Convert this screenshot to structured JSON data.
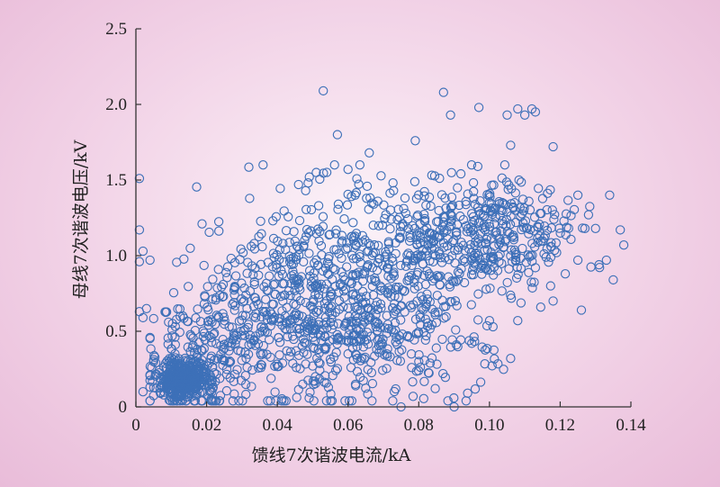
{
  "chart_data": {
    "type": "scatter",
    "title": "",
    "xlabel": "馈线7次谐波电流/kA",
    "ylabel": "母线7次谐波电压/kV",
    "xlim": [
      0,
      0.14
    ],
    "ylim": [
      0,
      2.5
    ],
    "xticks": [
      0,
      0.02,
      0.04,
      0.06,
      0.08,
      0.1,
      0.12,
      0.14
    ],
    "xtick_labels": [
      "0",
      "0.02",
      "0.04",
      "0.06",
      "0.08",
      "0.10",
      "0.12",
      "0.14"
    ],
    "yticks": [
      0,
      0.5,
      1.0,
      1.5,
      2.0,
      2.5
    ],
    "ytick_labels": [
      "0",
      "0.5",
      "1.0",
      "1.5",
      "2.0",
      "2.5"
    ],
    "grid": false,
    "marker": "open-circle",
    "series_color": "#3d70b8",
    "clusters": [
      {
        "cx": 0.0135,
        "cy": 0.18,
        "sx": 0.0045,
        "sy": 0.07,
        "n": 420
      },
      {
        "cx": 0.022,
        "cy": 0.45,
        "sx": 0.008,
        "sy": 0.22,
        "n": 150
      },
      {
        "cx": 0.045,
        "cy": 0.65,
        "sx": 0.014,
        "sy": 0.33,
        "n": 420
      },
      {
        "cx": 0.068,
        "cy": 0.78,
        "sx": 0.014,
        "sy": 0.32,
        "n": 380
      },
      {
        "cx": 0.092,
        "cy": 1.15,
        "sx": 0.014,
        "sy": 0.18,
        "n": 260
      },
      {
        "cx": 0.108,
        "cy": 1.15,
        "sx": 0.008,
        "sy": 0.15,
        "n": 140
      },
      {
        "cx": 0.08,
        "cy": 0.45,
        "sx": 0.015,
        "sy": 0.2,
        "n": 90
      }
    ],
    "points": [
      [
        0.001,
        1.51
      ],
      [
        0.001,
        1.17
      ],
      [
        0.002,
        1.03
      ],
      [
        0.001,
        0.96
      ],
      [
        0.004,
        0.97
      ],
      [
        0.001,
        0.63
      ],
      [
        0.002,
        0.59
      ],
      [
        0.003,
        0.65
      ],
      [
        0.002,
        0.1
      ],
      [
        0.053,
        2.09
      ],
      [
        0.057,
        1.8
      ],
      [
        0.087,
        2.08
      ],
      [
        0.089,
        1.93
      ],
      [
        0.097,
        1.98
      ],
      [
        0.105,
        1.93
      ],
      [
        0.108,
        1.97
      ],
      [
        0.11,
        1.93
      ],
      [
        0.112,
        1.97
      ],
      [
        0.113,
        1.95
      ],
      [
        0.118,
        1.72
      ],
      [
        0.079,
        1.76
      ],
      [
        0.066,
        1.68
      ],
      [
        0.106,
        1.73
      ],
      [
        0.125,
        1.4
      ],
      [
        0.128,
        1.27
      ],
      [
        0.127,
        1.18
      ],
      [
        0.13,
        1.18
      ],
      [
        0.134,
        1.4
      ],
      [
        0.137,
        1.17
      ],
      [
        0.138,
        1.07
      ],
      [
        0.125,
        0.97
      ],
      [
        0.131,
        0.94
      ],
      [
        0.135,
        0.84
      ],
      [
        0.126,
        0.64
      ],
      [
        0.118,
        0.7
      ],
      [
        0.116,
        0.99
      ],
      [
        0.119,
        1.02
      ],
      [
        0.113,
        0.92
      ],
      [
        0.108,
        0.57
      ],
      [
        0.106,
        0.32
      ],
      [
        0.1,
        0.57
      ],
      [
        0.095,
        0.42
      ],
      [
        0.101,
        0.53
      ],
      [
        0.078,
        0.26
      ],
      [
        0.071,
        0.35
      ],
      [
        0.075,
        0.0
      ],
      [
        0.09,
        0.0
      ],
      [
        0.056,
        0.33
      ],
      [
        0.05,
        0.27
      ],
      [
        0.044,
        0.94
      ],
      [
        0.046,
        1.47
      ],
      [
        0.048,
        1.43
      ],
      [
        0.051,
        1.55
      ],
      [
        0.06,
        1.57
      ],
      [
        0.062,
        1.4
      ]
    ]
  }
}
